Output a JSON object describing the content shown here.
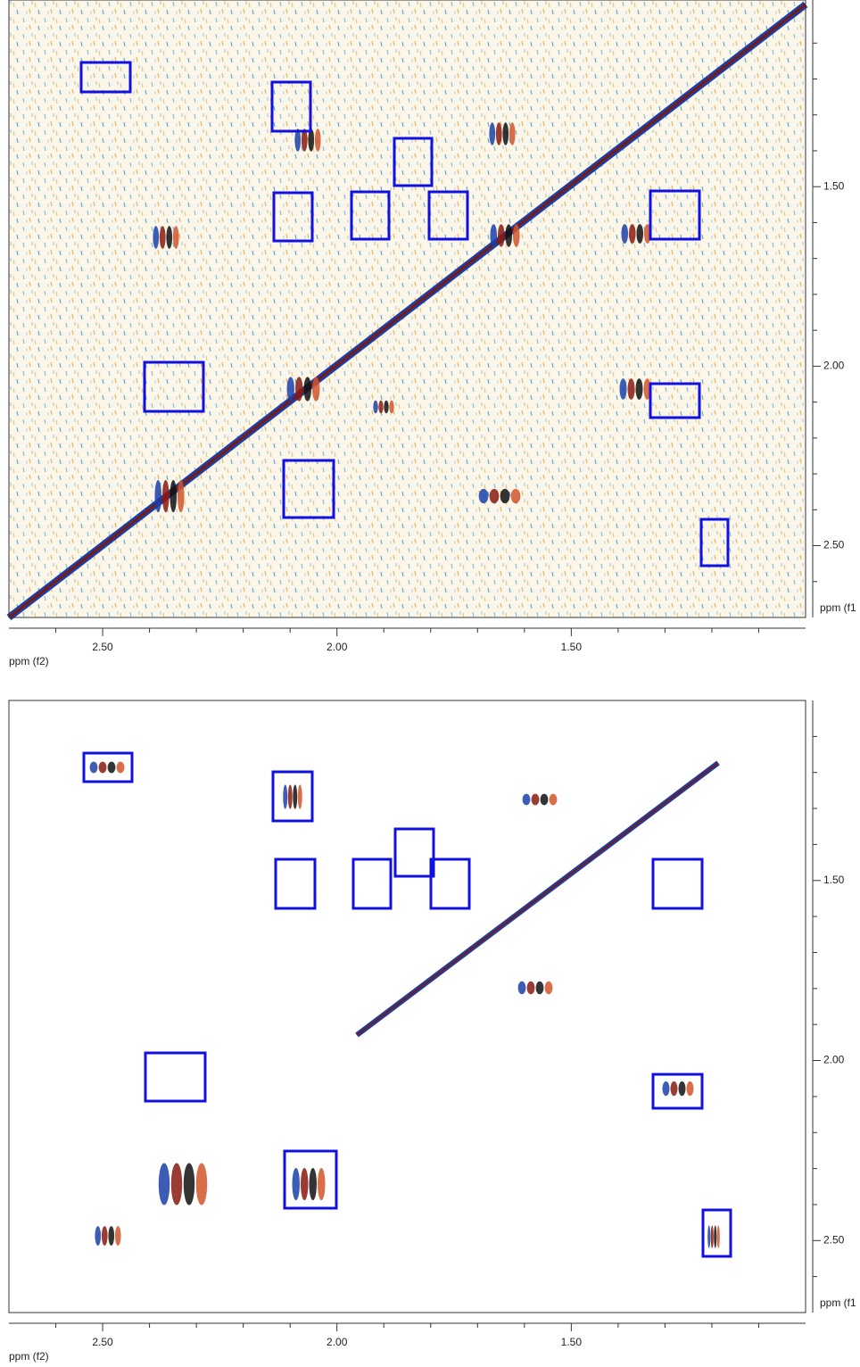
{
  "chart_data": [
    {
      "type": "spectrum",
      "xlabel": "ppm (f2)",
      "ylabel": "ppm (f1",
      "xlim": [
        2.7,
        1.0
      ],
      "ylim": [
        2.7,
        0.98
      ],
      "xticks": [
        {
          "value": 2.5,
          "label": "2.50"
        },
        {
          "value": 2.0,
          "label": "2.00"
        },
        {
          "value": 1.5,
          "label": "1.50"
        }
      ],
      "yticks": [
        {
          "value": 1.5,
          "label": "1.50"
        },
        {
          "value": 2.0,
          "label": "2.00"
        },
        {
          "value": 2.5,
          "label": "2.50"
        }
      ],
      "xminorticks": [
        2.6,
        2.4,
        2.3,
        2.2,
        2.1,
        1.9,
        1.8,
        1.7,
        1.6,
        1.4,
        1.3,
        1.2,
        1.1
      ],
      "yminorticks": [
        1.1,
        1.2,
        1.3,
        1.4,
        1.6,
        1.7,
        1.8,
        1.9,
        2.1,
        2.2,
        2.3,
        2.4,
        2.6
      ]
    },
    {
      "type": "spectrum",
      "xlabel": "ppm (f2)",
      "ylabel": "ppm (f1",
      "xlim": [
        2.7,
        1.0
      ],
      "ylim": [
        2.7,
        1.0
      ],
      "xticks": [
        {
          "value": 2.5,
          "label": "2.50"
        },
        {
          "value": 2.0,
          "label": "2.00"
        },
        {
          "value": 1.5,
          "label": "1.50"
        }
      ],
      "yticks": [
        {
          "value": 1.5,
          "label": "1.50"
        },
        {
          "value": 2.0,
          "label": "2.00"
        },
        {
          "value": 2.5,
          "label": "2.50"
        }
      ],
      "xminorticks": [
        2.6,
        2.4,
        2.3,
        2.2,
        2.1,
        1.9,
        1.8,
        1.7,
        1.6,
        1.4,
        1.3,
        1.2,
        1.1
      ],
      "yminorticks": [
        1.1,
        1.2,
        1.3,
        1.4,
        1.6,
        1.7,
        1.8,
        1.9,
        2.1,
        2.2,
        2.3,
        2.4,
        2.6
      ]
    }
  ]
}
